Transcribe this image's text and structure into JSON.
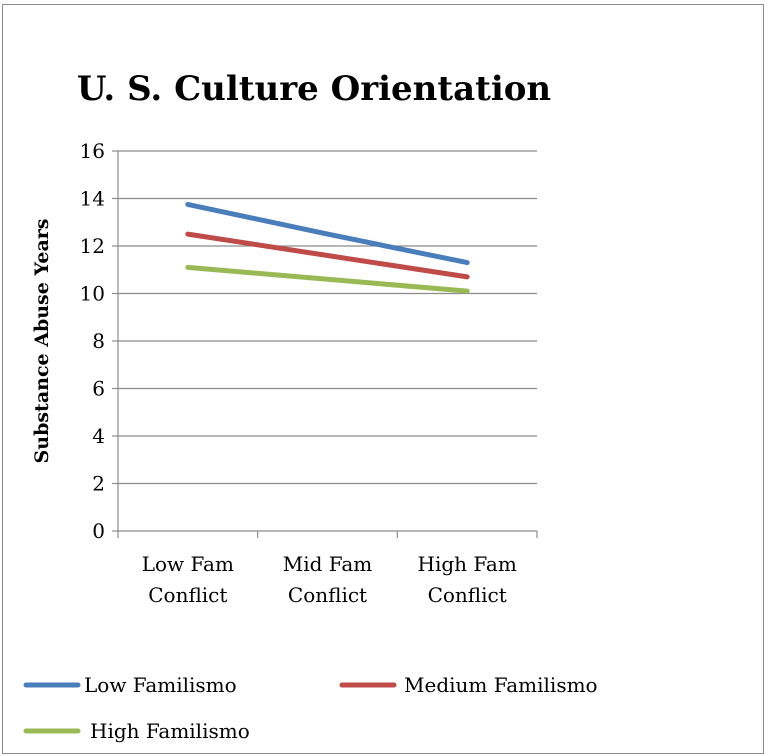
{
  "chart_data": {
    "type": "line",
    "title": "U. S. Culture Orientation",
    "xlabel": "",
    "ylabel": "Substance Abuse Years",
    "categories": [
      [
        "Low Fam",
        "Conflict"
      ],
      [
        "Mid Fam",
        "Conflict"
      ],
      [
        "High Fam",
        "Conflict"
      ]
    ],
    "ylim": [
      0,
      16
    ],
    "yticks": [
      0,
      2,
      4,
      6,
      8,
      10,
      12,
      14,
      16
    ],
    "grid": true,
    "legend_position": "bottom",
    "series": [
      {
        "name": "Low Familismo",
        "color": "#4a7ebb",
        "values": [
          13.75,
          12.5,
          11.3
        ]
      },
      {
        "name": "Medium Familismo",
        "color": "#be4b48",
        "values": [
          12.5,
          11.6,
          10.7
        ]
      },
      {
        "name": "High Familismo",
        "color": "#98b954",
        "values": [
          11.1,
          10.6,
          10.1
        ]
      }
    ]
  }
}
